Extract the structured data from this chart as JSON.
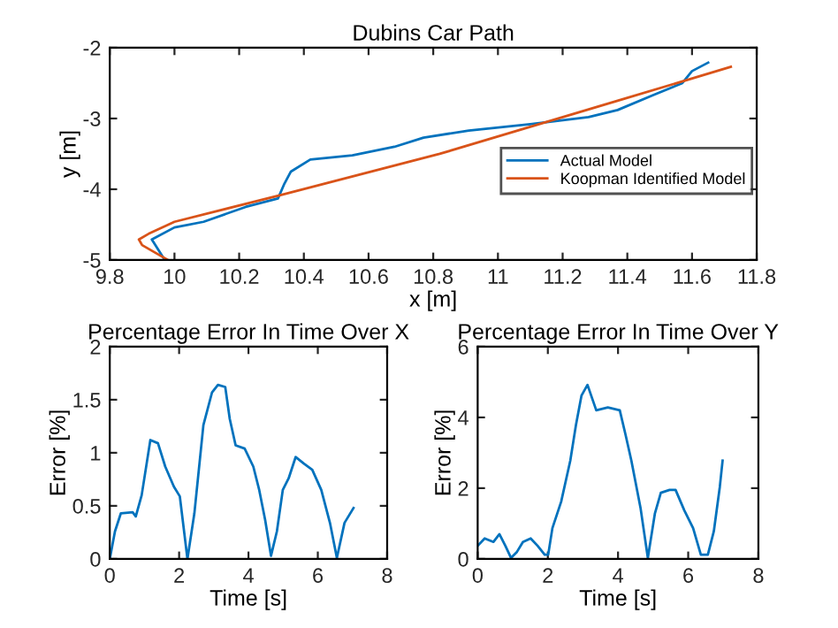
{
  "chart_data": [
    {
      "type": "line",
      "title": "Dubins Car Path",
      "xlabel": "x [m]",
      "ylabel": "y [m]",
      "xlim": [
        9.8,
        11.8
      ],
      "ylim": [
        -5,
        -2
      ],
      "xticks": [
        9.8,
        10,
        10.2,
        10.4,
        10.6,
        10.8,
        11,
        11.2,
        11.4,
        11.6,
        11.8
      ],
      "yticks": [
        -5,
        -4,
        -3,
        -2
      ],
      "grid": false,
      "legend": "right",
      "series": [
        {
          "name": "Actual Model",
          "color": "#0072bd",
          "x": [
            9.97,
            9.93,
            10.0,
            10.09,
            10.22,
            10.32,
            10.34,
            10.36,
            10.42,
            10.55,
            10.68,
            10.77,
            10.91,
            11.1,
            11.28,
            11.37,
            11.48,
            11.57,
            11.6,
            11.65
          ],
          "values": [
            -5,
            -4.71,
            -4.54,
            -4.46,
            -4.25,
            -4.13,
            -3.92,
            -3.75,
            -3.58,
            -3.52,
            -3.4,
            -3.27,
            -3.17,
            -3.08,
            -2.98,
            -2.88,
            -2.67,
            -2.5,
            -2.33,
            -2.21
          ]
        },
        {
          "name": "Koopman Identified Model",
          "color": "#d95319",
          "x": [
            9.98,
            9.9,
            9.89,
            9.92,
            10.0,
            10.33,
            10.82,
            11.37,
            11.72
          ],
          "values": [
            -5,
            -4.79,
            -4.71,
            -4.63,
            -4.46,
            -4.08,
            -3.5,
            -2.75,
            -2.27
          ]
        }
      ]
    },
    {
      "type": "line",
      "title": "Percentage Error In Time Over X",
      "xlabel": "Time [s]",
      "ylabel": "Error [%]",
      "xlim": [
        0,
        8
      ],
      "ylim": [
        0,
        2
      ],
      "xticks": [
        0,
        2,
        4,
        6,
        8
      ],
      "yticks": [
        0,
        0.5,
        1,
        1.5,
        2
      ],
      "grid": false,
      "series": [
        {
          "color": "#0072bd",
          "x": [
            0,
            0.15,
            0.32,
            0.66,
            0.75,
            0.92,
            1.17,
            1.39,
            1.6,
            1.85,
            2.02,
            2.24,
            2.44,
            2.7,
            2.95,
            3.12,
            3.33,
            3.46,
            3.63,
            3.89,
            4.14,
            4.31,
            4.48,
            4.65,
            4.82,
            4.99,
            5.16,
            5.36,
            5.59,
            5.84,
            6.1,
            6.35,
            6.55,
            6.77,
            7.03
          ],
          "values": [
            0,
            0.26,
            0.43,
            0.44,
            0.4,
            0.6,
            1.12,
            1.09,
            0.87,
            0.68,
            0.59,
            0,
            0.43,
            1.26,
            1.57,
            1.64,
            1.62,
            1.32,
            1.07,
            1.04,
            0.87,
            0.65,
            0.37,
            0.03,
            0.26,
            0.65,
            0.76,
            0.96,
            0.9,
            0.84,
            0.65,
            0.34,
            0.01,
            0.34,
            0.48
          ]
        }
      ]
    },
    {
      "type": "line",
      "title": "Percentage Error In Time Over Y",
      "xlabel": "Time [s]",
      "ylabel": "Error [%]",
      "xlim": [
        0,
        8
      ],
      "ylim": [
        0,
        6
      ],
      "xticks": [
        0,
        2,
        4,
        6,
        8
      ],
      "yticks": [
        0,
        2,
        4,
        6
      ],
      "grid": false,
      "series": [
        {
          "color": "#0072bd",
          "x": [
            0,
            0.2,
            0.45,
            0.62,
            0.79,
            0.95,
            1.12,
            1.29,
            1.51,
            1.71,
            1.91,
            2.01,
            2.13,
            2.38,
            2.64,
            2.8,
            2.96,
            3.13,
            3.38,
            3.71,
            4.05,
            4.21,
            4.38,
            4.64,
            4.85,
            5.05,
            5.22,
            5.47,
            5.64,
            5.89,
            6.14,
            6.36,
            6.56,
            6.73,
            6.9,
            6.98
          ],
          "values": [
            0.37,
            0.58,
            0.48,
            0.7,
            0.37,
            0.03,
            0.2,
            0.48,
            0.58,
            0.37,
            0.12,
            0.12,
            0.87,
            1.62,
            2.78,
            3.78,
            4.62,
            4.92,
            4.2,
            4.28,
            4.2,
            3.53,
            2.78,
            1.45,
            0.03,
            1.28,
            1.87,
            1.95,
            1.95,
            1.37,
            0.87,
            0.12,
            0.12,
            0.78,
            2.03,
            2.78
          ]
        }
      ]
    }
  ]
}
